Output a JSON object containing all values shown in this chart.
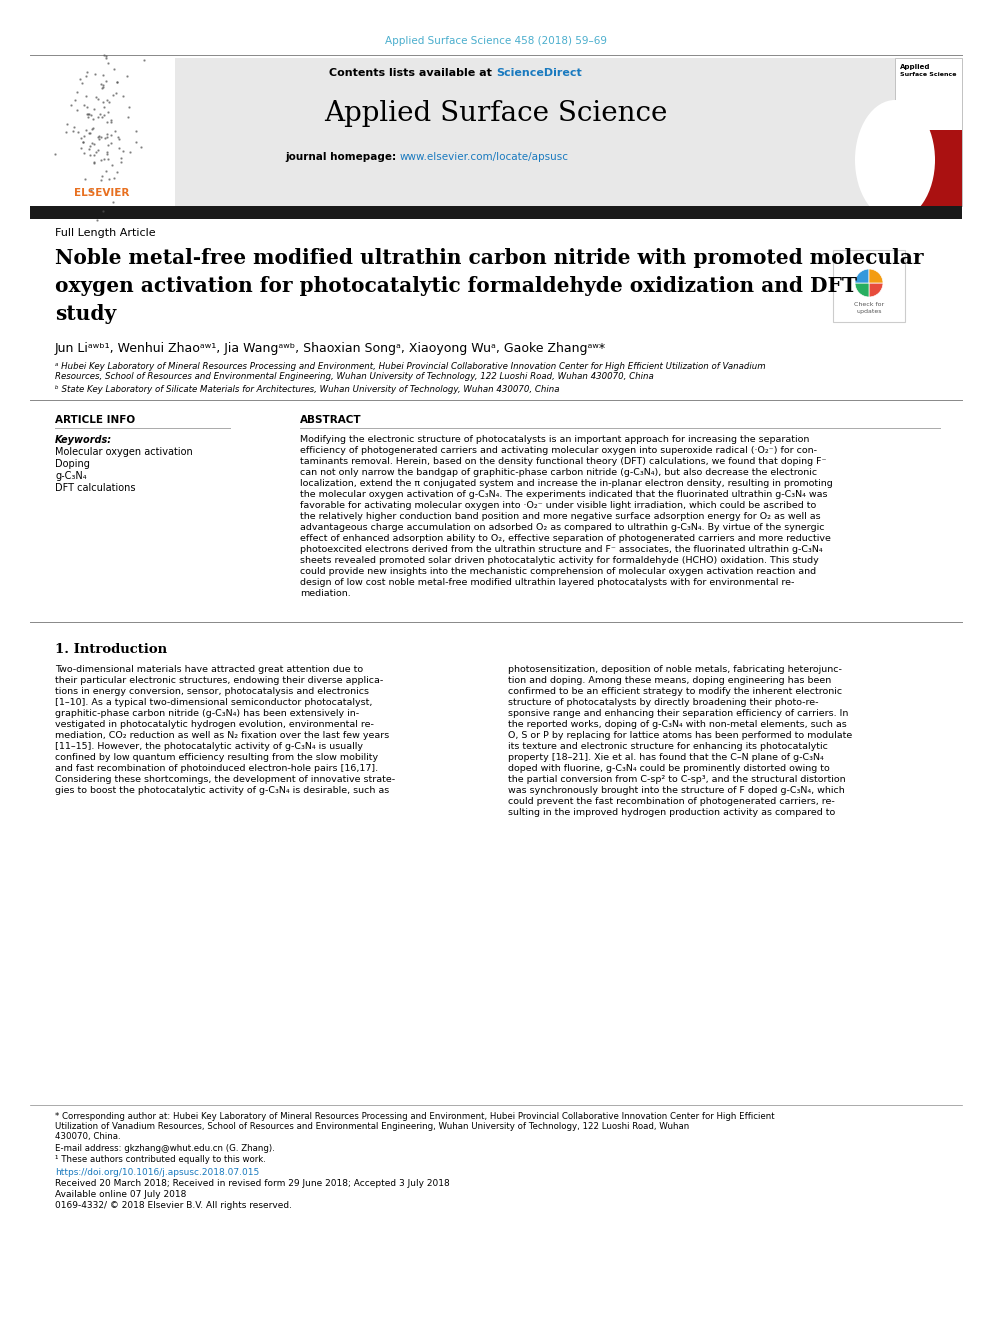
{
  "journal_ref": "Applied Surface Science 458 (2018) 59–69",
  "journal_name": "Applied Surface Science",
  "contents_line": "Contents lists available at",
  "sciencedirect": "ScienceDirect",
  "journal_homepage_label": "journal homepage:",
  "journal_url": "www.elsevier.com/locate/apsusc",
  "article_type": "Full Length Article",
  "title_line1": "Noble metal-free modified ultrathin carbon nitride with promoted molecular",
  "title_line2": "oxygen activation for photocatalytic formaldehyde oxidization and DFT",
  "title_line3": "study",
  "authors": "Jun Liᵃʷᵇ¹, Wenhui Zhaoᵃʷ¹, Jia Wangᵃʷᵇ, Shaoxian Songᵃ, Xiaoyong Wuᵃ, Gaoke Zhangᵃʷ*",
  "affil_a_line1": "ᵃ Hubei Key Laboratory of Mineral Resources Processing and Environment, Hubei Provincial Collaborative Innovation Center for High Efficient Utilization of Vanadium",
  "affil_a_line2": "Resources, School of Resources and Environmental Engineering, Wuhan University of Technology, 122 Luoshi Road, Wuhan 430070, China",
  "affil_b": "ᵇ State Key Laboratory of Silicate Materials for Architectures, Wuhan University of Technology, Wuhan 430070, China",
  "article_info_label": "ARTICLE INFO",
  "abstract_label": "ABSTRACT",
  "keywords_label": "Keywords:",
  "keywords": [
    "Molecular oxygen activation",
    "Doping",
    "g-C₃N₄",
    "DFT calculations"
  ],
  "abstract_lines": [
    "Modifying the electronic structure of photocatalysts is an important approach for increasing the separation",
    "efficiency of photogenerated carriers and activating molecular oxygen into superoxide radical (·O₂⁻) for con-",
    "taminants removal. Herein, based on the density functional theory (DFT) calculations, we found that doping F⁻",
    "can not only narrow the bandgap of graphitic-phase carbon nitride (g-C₃N₄), but also decrease the electronic",
    "localization, extend the π conjugated system and increase the in-planar electron density, resulting in promoting",
    "the molecular oxygen activation of g-C₃N₄. The experiments indicated that the fluorinated ultrathin g-C₃N₄ was",
    "favorable for activating molecular oxygen into ·O₂⁻ under visible light irradiation, which could be ascribed to",
    "the relatively higher conduction band position and more negative surface adsorption energy for O₂ as well as",
    "advantageous charge accumulation on adsorbed O₂ as compared to ultrathin g-C₃N₄. By virtue of the synergic",
    "effect of enhanced adsorption ability to O₂, effective separation of photogenerated carriers and more reductive",
    "photoexcited electrons derived from the ultrathin structure and F⁻ associates, the fluorinated ultrathin g-C₃N₄",
    "sheets revealed promoted solar driven photocatalytic activity for formaldehyde (HCHO) oxidation. This study",
    "could provide new insights into the mechanistic comprehension of molecular oxygen activation reaction and",
    "design of low cost noble metal-free modified ultrathin layered photocatalysts with for environmental re-",
    "mediation."
  ],
  "intro_heading": "1. Introduction",
  "intro_col1_lines": [
    "Two-dimensional materials have attracted great attention due to",
    "their particular electronic structures, endowing their diverse applica-",
    "tions in energy conversion, sensor, photocatalysis and electronics",
    "[1–10]. As a typical two-dimensional semiconductor photocatalyst,",
    "graphitic-phase carbon nitride (g-C₃N₄) has been extensively in-",
    "vestigated in photocatalytic hydrogen evolution, environmental re-",
    "mediation, CO₂ reduction as well as N₂ fixation over the last few years",
    "[11–15]. However, the photocatalytic activity of g-C₃N₄ is usually",
    "confined by low quantum efficiency resulting from the slow mobility",
    "and fast recombination of photoinduced electron-hole pairs [16,17].",
    "Considering these shortcomings, the development of innovative strate-",
    "gies to boost the photocatalytic activity of g-C₃N₄ is desirable, such as"
  ],
  "intro_col2_lines": [
    "photosensitization, deposition of noble metals, fabricating heterojunc-",
    "tion and doping. Among these means, doping engineering has been",
    "confirmed to be an efficient strategy to modify the inherent electronic",
    "structure of photocatalysts by directly broadening their photo-re-",
    "sponsive range and enhancing their separation efficiency of carriers. In",
    "the reported works, doping of g-C₃N₄ with non-metal elements, such as",
    "O, S or P by replacing for lattice atoms has been performed to modulate",
    "its texture and electronic structure for enhancing its photocatalytic",
    "property [18–21]. Xie et al. has found that the C–N plane of g-C₃N₄",
    "doped with fluorine, g-C₃N₄ could be prominently distorted owing to",
    "the partial conversion from C-sp² to C-sp³, and the structural distortion",
    "was synchronously brought into the structure of F doped g-C₃N₄, which",
    "could prevent the fast recombination of photogenerated carriers, re-",
    "sulting in the improved hydrogen production activity as compared to"
  ],
  "footer_line1": "* Corresponding author at: Hubei Key Laboratory of Mineral Resources Processing and Environment, Hubei Provincial Collaborative Innovation Center for High Efficient",
  "footer_line2": "Utilization of Vanadium Resources, School of Resources and Environmental Engineering, Wuhan University of Technology, 122 Luoshi Road, Wuhan",
  "footer_line3": "430070, China.",
  "email_line": "E-mail address: gkzhang@whut.edu.cn (G. Zhang).",
  "footnote1": "¹ These authors contributed equally to this work.",
  "doi_line": "https://doi.org/10.1016/j.apsusc.2018.07.015",
  "received_line": "Received 20 March 2018; Received in revised form 29 June 2018; Accepted 3 July 2018",
  "available_line": "Available online 07 July 2018",
  "issn_line": "0169-4332/ © 2018 Elsevier B.V. All rights reserved.",
  "bg_header_color": "#e8e8e8",
  "cyan_color": "#4BAECD",
  "dark_bar_color": "#1a1a1a",
  "link_color": "#1a7abf",
  "elsevier_orange": "#E87020"
}
